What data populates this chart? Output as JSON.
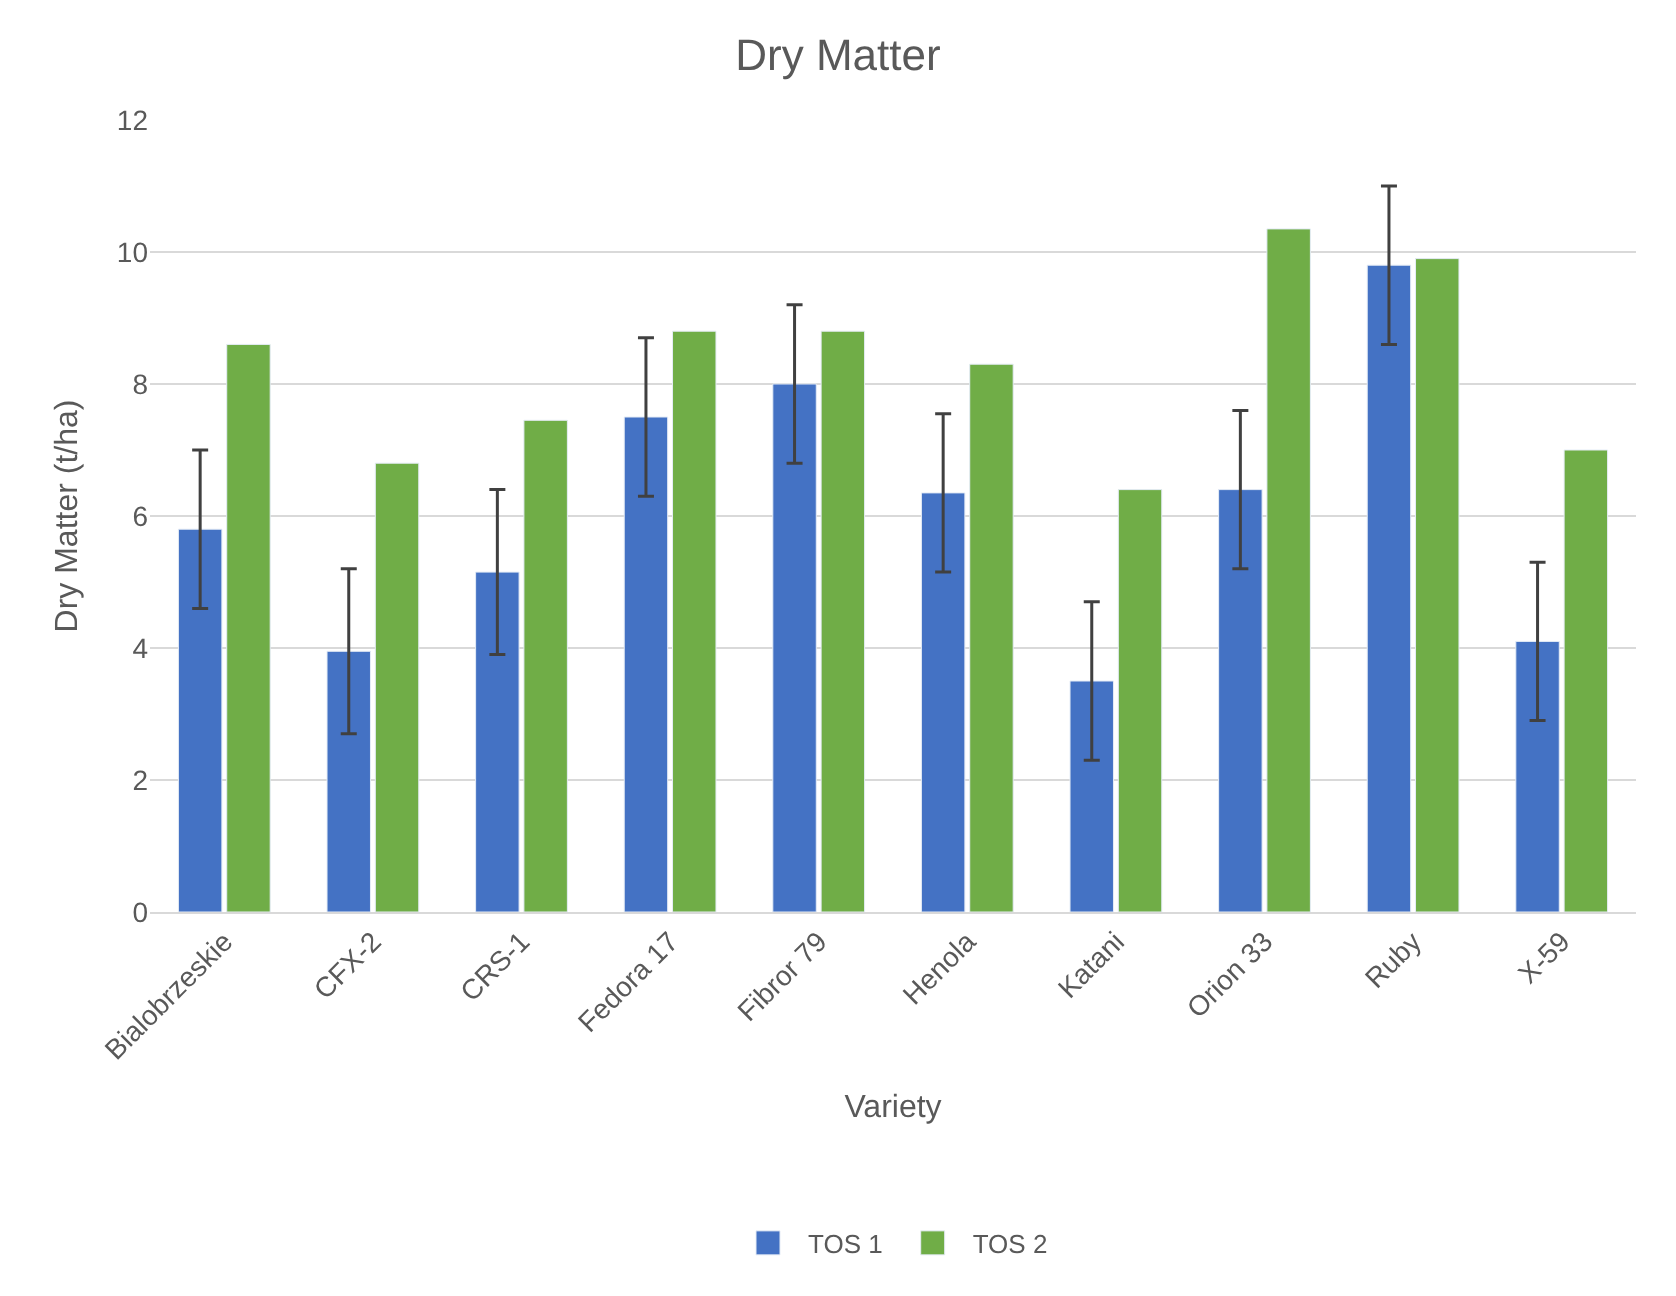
{
  "chart_data": {
    "type": "bar",
    "title": "Dry Matter",
    "xlabel": "Variety",
    "ylabel": "Dry Matter (t/ha)",
    "categories": [
      "Bialobrzeskie",
      "CFX-2",
      "CRS-1",
      "Fedora 17",
      "Fibror 79",
      "Henola",
      "Katani",
      "Orion 33",
      "Ruby",
      "X-59"
    ],
    "series": [
      {
        "name": "TOS 1",
        "color": "#4472c4",
        "values": [
          5.8,
          3.95,
          5.15,
          7.5,
          8.0,
          6.35,
          3.5,
          6.4,
          9.8,
          4.1
        ],
        "errors": [
          1.2,
          1.25,
          1.25,
          1.2,
          1.2,
          1.2,
          1.2,
          1.2,
          1.2,
          1.2
        ]
      },
      {
        "name": "TOS 2",
        "color": "#70ad47",
        "values": [
          8.6,
          6.8,
          7.45,
          8.8,
          8.8,
          8.3,
          6.4,
          10.35,
          9.9,
          7.0
        ]
      }
    ],
    "ylim": [
      0,
      12
    ],
    "yticks": [
      0,
      2,
      4,
      6,
      8,
      10,
      12
    ],
    "grid": "y",
    "legend": "bottom"
  }
}
